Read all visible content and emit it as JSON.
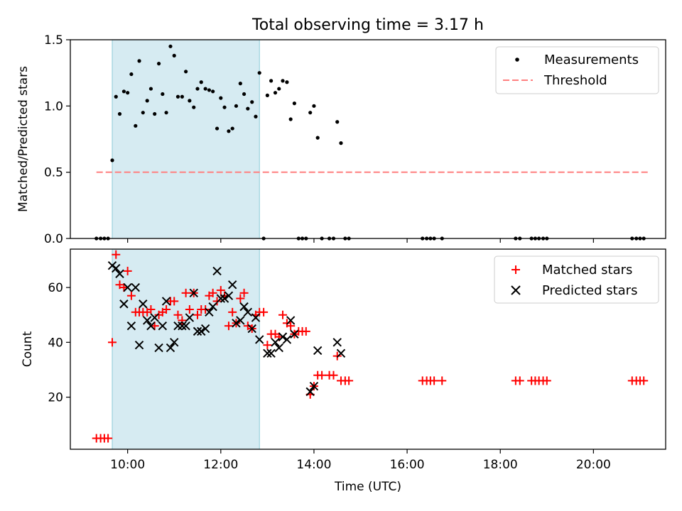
{
  "chart_data": [
    {
      "type": "scatter",
      "title": "Total observing time = 3.17 h",
      "xlabel": "",
      "ylabel": "Matched/Predicted stars",
      "xlim": [
        8.77,
        21.55
      ],
      "ylim": [
        0,
        1.5
      ],
      "yticks": [
        0.0,
        0.5,
        1.0,
        1.5
      ],
      "ytick_labels": [
        "0.0",
        "0.5",
        "1.0",
        "1.5"
      ],
      "xticks": [
        10,
        12,
        14,
        16,
        18,
        20
      ],
      "xtick_labels_visible": false,
      "grid": false,
      "legend_position": "top-right",
      "shaded_span": {
        "x": [
          9.67,
          12.83
        ],
        "color": "#add8e6"
      },
      "threshold": {
        "name": "Threshold",
        "y": 0.5,
        "x": [
          9.33,
          21.17
        ],
        "color": "#ff7f7f",
        "style": "dashed"
      },
      "series": [
        {
          "name": "Measurements",
          "marker": "dot",
          "color": "#000000",
          "points": [
            [
              9.33,
              0
            ],
            [
              9.42,
              0
            ],
            [
              9.5,
              0
            ],
            [
              9.58,
              0
            ],
            [
              9.67,
              0.59
            ],
            [
              9.75,
              1.07
            ],
            [
              9.83,
              0.94
            ],
            [
              9.92,
              1.11
            ],
            [
              10.0,
              1.1
            ],
            [
              10.08,
              1.24
            ],
            [
              10.17,
              0.85
            ],
            [
              10.25,
              1.34
            ],
            [
              10.33,
              0.95
            ],
            [
              10.42,
              1.04
            ],
            [
              10.5,
              1.13
            ],
            [
              10.58,
              0.94
            ],
            [
              10.67,
              1.32
            ],
            [
              10.75,
              1.09
            ],
            [
              10.83,
              0.95
            ],
            [
              10.92,
              1.45
            ],
            [
              11.0,
              1.38
            ],
            [
              11.08,
              1.07
            ],
            [
              11.17,
              1.07
            ],
            [
              11.25,
              1.26
            ],
            [
              11.33,
              1.04
            ],
            [
              11.42,
              0.99
            ],
            [
              11.5,
              1.13
            ],
            [
              11.58,
              1.18
            ],
            [
              11.67,
              1.13
            ],
            [
              11.75,
              1.12
            ],
            [
              11.83,
              1.11
            ],
            [
              11.92,
              0.83
            ],
            [
              12.0,
              1.06
            ],
            [
              12.08,
              0.99
            ],
            [
              12.17,
              0.81
            ],
            [
              12.25,
              0.83
            ],
            [
              12.33,
              1.0
            ],
            [
              12.42,
              1.17
            ],
            [
              12.5,
              1.09
            ],
            [
              12.58,
              0.98
            ],
            [
              12.67,
              1.03
            ],
            [
              12.75,
              0.92
            ],
            [
              12.83,
              1.25
            ],
            [
              12.92,
              0
            ],
            [
              13.0,
              1.08
            ],
            [
              13.08,
              1.19
            ],
            [
              13.17,
              1.1
            ],
            [
              13.25,
              1.13
            ],
            [
              13.33,
              1.19
            ],
            [
              13.42,
              1.18
            ],
            [
              13.5,
              0.9
            ],
            [
              13.58,
              1.02
            ],
            [
              13.67,
              0
            ],
            [
              13.75,
              0
            ],
            [
              13.83,
              0
            ],
            [
              13.92,
              0.95
            ],
            [
              14.0,
              1.0
            ],
            [
              14.08,
              0.76
            ],
            [
              14.17,
              0
            ],
            [
              14.33,
              0
            ],
            [
              14.42,
              0
            ],
            [
              14.5,
              0.88
            ],
            [
              14.58,
              0.72
            ],
            [
              14.67,
              0
            ],
            [
              14.75,
              0
            ],
            [
              16.33,
              0
            ],
            [
              16.42,
              0
            ],
            [
              16.5,
              0
            ],
            [
              16.58,
              0
            ],
            [
              16.75,
              0
            ],
            [
              18.33,
              0
            ],
            [
              18.42,
              0
            ],
            [
              18.67,
              0
            ],
            [
              18.75,
              0
            ],
            [
              18.83,
              0
            ],
            [
              18.92,
              0
            ],
            [
              19.0,
              0
            ],
            [
              20.83,
              0
            ],
            [
              20.92,
              0
            ],
            [
              21.0,
              0
            ],
            [
              21.08,
              0
            ]
          ]
        }
      ]
    },
    {
      "type": "scatter",
      "title": "",
      "xlabel": "Time (UTC)",
      "ylabel": "Count",
      "xlim": [
        8.77,
        21.55
      ],
      "ylim": [
        1,
        74
      ],
      "yticks": [
        20,
        40,
        60
      ],
      "ytick_labels": [
        "20",
        "40",
        "60"
      ],
      "xticks": [
        10,
        12,
        14,
        16,
        18,
        20
      ],
      "xtick_labels": [
        "10:00",
        "12:00",
        "14:00",
        "16:00",
        "18:00",
        "20:00"
      ],
      "grid": false,
      "legend_position": "top-right",
      "shaded_span": {
        "x": [
          9.67,
          12.83
        ],
        "color": "#add8e6"
      },
      "series": [
        {
          "name": "Matched stars",
          "marker": "plus",
          "color": "#ff0000",
          "points": [
            [
              9.33,
              5
            ],
            [
              9.42,
              5
            ],
            [
              9.5,
              5
            ],
            [
              9.58,
              5
            ],
            [
              9.67,
              40
            ],
            [
              9.75,
              72
            ],
            [
              9.83,
              61
            ],
            [
              9.92,
              60
            ],
            [
              10.0,
              66
            ],
            [
              10.08,
              57
            ],
            [
              10.17,
              51
            ],
            [
              10.25,
              51
            ],
            [
              10.33,
              51
            ],
            [
              10.42,
              51
            ],
            [
              10.5,
              52
            ],
            [
              10.58,
              46
            ],
            [
              10.67,
              50
            ],
            [
              10.75,
              51
            ],
            [
              10.83,
              52
            ],
            [
              10.92,
              55
            ],
            [
              11.0,
              55
            ],
            [
              11.08,
              50
            ],
            [
              11.17,
              48
            ],
            [
              11.25,
              58
            ],
            [
              11.33,
              52
            ],
            [
              11.42,
              58
            ],
            [
              11.5,
              50
            ],
            [
              11.58,
              52
            ],
            [
              11.67,
              52
            ],
            [
              11.75,
              57
            ],
            [
              11.83,
              58
            ],
            [
              11.92,
              55
            ],
            [
              12.0,
              59
            ],
            [
              12.08,
              57
            ],
            [
              12.17,
              46
            ],
            [
              12.25,
              51
            ],
            [
              12.33,
              47
            ],
            [
              12.42,
              56
            ],
            [
              12.5,
              58
            ],
            [
              12.58,
              46
            ],
            [
              12.67,
              45
            ],
            [
              12.75,
              50
            ],
            [
              12.83,
              51
            ],
            [
              12.92,
              51
            ],
            [
              13.0,
              39
            ],
            [
              13.08,
              43
            ],
            [
              13.17,
              43
            ],
            [
              13.25,
              42
            ],
            [
              13.33,
              50
            ],
            [
              13.42,
              47
            ],
            [
              13.5,
              46
            ],
            [
              13.58,
              43
            ],
            [
              13.67,
              44
            ],
            [
              13.75,
              44
            ],
            [
              13.83,
              44
            ],
            [
              13.92,
              21
            ],
            [
              14.0,
              24
            ],
            [
              14.08,
              28
            ],
            [
              14.17,
              28
            ],
            [
              14.33,
              28
            ],
            [
              14.42,
              28
            ],
            [
              14.5,
              35
            ],
            [
              14.58,
              26
            ],
            [
              14.67,
              26
            ],
            [
              14.75,
              26
            ],
            [
              16.33,
              26
            ],
            [
              16.42,
              26
            ],
            [
              16.5,
              26
            ],
            [
              16.58,
              26
            ],
            [
              16.75,
              26
            ],
            [
              18.33,
              26
            ],
            [
              18.42,
              26
            ],
            [
              18.67,
              26
            ],
            [
              18.75,
              26
            ],
            [
              18.83,
              26
            ],
            [
              18.92,
              26
            ],
            [
              19.0,
              26
            ],
            [
              20.83,
              26
            ],
            [
              20.92,
              26
            ],
            [
              21.0,
              26
            ],
            [
              21.08,
              26
            ]
          ]
        },
        {
          "name": "Predicted stars",
          "marker": "x",
          "color": "#000000",
          "points": [
            [
              9.67,
              68
            ],
            [
              9.75,
              67
            ],
            [
              9.83,
              65
            ],
            [
              9.92,
              54
            ],
            [
              10.0,
              60
            ],
            [
              10.08,
              46
            ],
            [
              10.17,
              60
            ],
            [
              10.25,
              39
            ],
            [
              10.33,
              54
            ],
            [
              10.42,
              48
            ],
            [
              10.5,
              46
            ],
            [
              10.58,
              49
            ],
            [
              10.67,
              38
            ],
            [
              10.75,
              46
            ],
            [
              10.83,
              55
            ],
            [
              10.92,
              38
            ],
            [
              11.0,
              40
            ],
            [
              11.08,
              46
            ],
            [
              11.17,
              46
            ],
            [
              11.25,
              46
            ],
            [
              11.33,
              49
            ],
            [
              11.42,
              58
            ],
            [
              11.5,
              44
            ],
            [
              11.58,
              44
            ],
            [
              11.67,
              45
            ],
            [
              11.75,
              51
            ],
            [
              11.83,
              53
            ],
            [
              11.92,
              66
            ],
            [
              12.0,
              56
            ],
            [
              12.08,
              56
            ],
            [
              12.17,
              57
            ],
            [
              12.25,
              61
            ],
            [
              12.33,
              47
            ],
            [
              12.42,
              48
            ],
            [
              12.5,
              53
            ],
            [
              12.58,
              51
            ],
            [
              12.67,
              45
            ],
            [
              12.75,
              49
            ],
            [
              12.83,
              41
            ],
            [
              13.0,
              36
            ],
            [
              13.08,
              36
            ],
            [
              13.17,
              40
            ],
            [
              13.25,
              38
            ],
            [
              13.33,
              42
            ],
            [
              13.42,
              41
            ],
            [
              13.5,
              48
            ],
            [
              13.58,
              43
            ],
            [
              13.92,
              22
            ],
            [
              14.0,
              24
            ],
            [
              14.08,
              37
            ],
            [
              14.5,
              40
            ],
            [
              14.58,
              36
            ]
          ]
        }
      ]
    }
  ]
}
